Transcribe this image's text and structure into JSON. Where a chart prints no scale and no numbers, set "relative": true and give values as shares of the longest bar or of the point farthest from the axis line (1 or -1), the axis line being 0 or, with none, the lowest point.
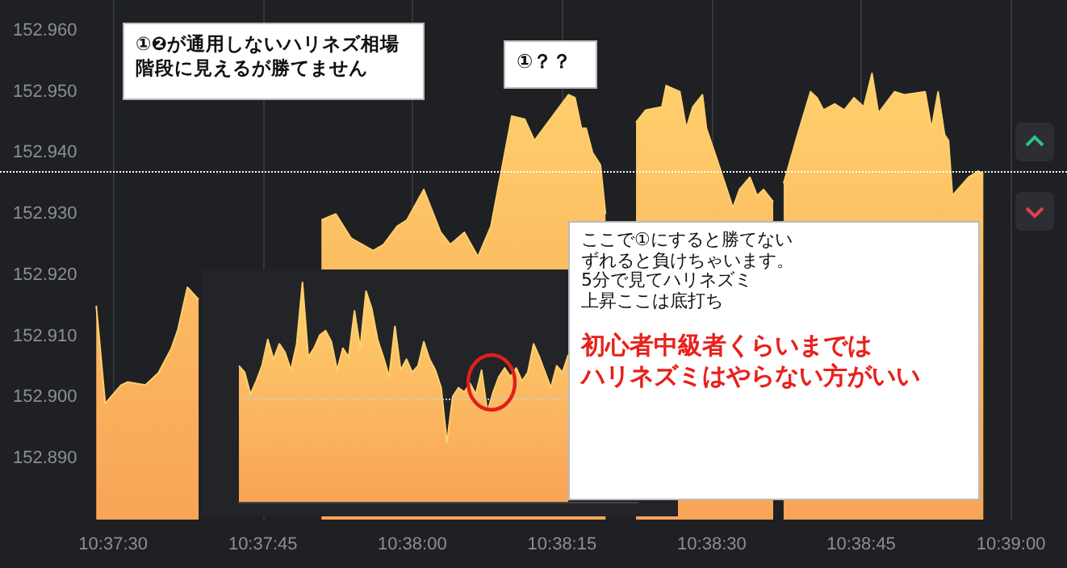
{
  "chart_data": [
    {
      "type": "area",
      "color": "#ffd06c",
      "x": [
        10.62453,
        10.62478,
        10.62522,
        10.6254,
        10.6259,
        10.62626,
        10.62662,
        10.6268,
        10.62707,
        10.62738,
        10.62905,
        10.6308,
        10.6312,
        10.63163,
        10.63224,
        10.63253,
        10.63291,
        10.63318,
        10.63365,
        10.63412,
        10.63439,
        10.63478,
        10.63516,
        10.63552,
        10.6361,
        10.63646,
        10.63673,
        10.63768,
        10.63786,
        10.63804,
        10.63817,
        10.63835,
        10.63857,
        10.63871,
        10.63907,
        10.63956,
        10.63983,
        10.64028,
        10.6404,
        10.64078,
        10.64096,
        10.64114,
        10.64141,
        10.64152,
        10.64181,
        10.64226,
        10.64244,
        10.64273,
        10.64293,
        10.64311,
        10.64338,
        10.64356,
        10.64367,
        10.64406,
        10.64442,
        10.6446,
        10.64478,
        10.64509,
        10.64536,
        10.64563,
        10.6459,
        10.64613,
        10.64631,
        10.64676,
        10.64703,
        10.64761,
        10.64779,
        10.64797,
        10.64815,
        10.64826,
        10.64837,
        10.64882,
        10.64909,
        10.64923
      ],
      "values": [
        152.915,
        152.899,
        152.902,
        152.9025,
        152.902,
        152.904,
        152.908,
        152.911,
        152.918,
        152.916,
        null,
        152.929,
        152.93,
        152.926,
        152.924,
        152.925,
        152.928,
        152.929,
        152.934,
        152.927,
        152.925,
        152.927,
        152.923,
        152.928,
        152.946,
        152.9455,
        152.942,
        152.9495,
        152.949,
        152.944,
        152.944,
        152.94,
        152.938,
        152.93,
        null,
        152.945,
        152.947,
        152.9475,
        152.951,
        152.95,
        152.944,
        152.9475,
        152.9495,
        152.944,
        152.939,
        152.931,
        152.934,
        152.936,
        152.933,
        152.934,
        152.932,
        null,
        152.935,
        152.943,
        152.95,
        152.949,
        152.947,
        152.948,
        152.947,
        152.949,
        152.9475,
        152.953,
        152.9465,
        152.95,
        152.9495,
        152.95,
        152.944,
        152.95,
        152.943,
        152.942,
        152.933,
        152.936,
        152.937,
        152.9365
      ],
      "xlim": [
        10.62185,
        10.65156
      ],
      "ylim": [
        152.88,
        152.965
      ],
      "xticks": [
        {
          "value": 10.625,
          "label": "10:37:30"
        },
        {
          "value": 10.62917,
          "label": "10:37:45"
        },
        {
          "value": 10.63333,
          "label": "10:38:00"
        },
        {
          "value": 10.6375,
          "label": "10:38:15"
        },
        {
          "value": 10.64167,
          "label": "10:38:30"
        },
        {
          "value": 10.64583,
          "label": "10:38:45"
        },
        {
          "value": 10.65,
          "label": "10:39:00"
        }
      ],
      "yticks": [
        {
          "value": 152.89,
          "label": "152.890"
        },
        {
          "value": 152.9,
          "label": "152.900"
        },
        {
          "value": 152.91,
          "label": "152.910"
        },
        {
          "value": 152.92,
          "label": "152.920"
        },
        {
          "value": 152.93,
          "label": "152.930"
        },
        {
          "value": 152.94,
          "label": "152.940"
        },
        {
          "value": 152.95,
          "label": "152.950"
        },
        {
          "value": 152.96,
          "label": "152.960"
        }
      ],
      "grid": "x",
      "ref_lines": [
        {
          "axis": "y",
          "value": 152.937,
          "color": "#ffffff",
          "line_style": "dotted"
        }
      ],
      "annotations": [
        "①❷が通用しないハリネズ相場",
        "階段に見えるが勝てません",
        "①？？",
        "ここで①にすると勝てない",
        "ずれると負けちゃいます。",
        "5分で見てハリネズミ",
        "上昇ここは底打ち",
        "初心者中級者くらいまでは",
        "ハリネズミはやらない方がいい"
      ]
    },
    {
      "type": "area",
      "color": "#ffd06c",
      "relative": true,
      "categories": [
        null,
        null,
        null,
        null,
        null,
        null,
        null,
        null,
        null,
        null,
        null,
        null,
        null,
        null,
        null,
        null,
        null,
        null,
        null,
        null,
        null,
        null,
        null,
        null,
        null,
        null,
        null,
        null,
        null,
        null,
        null,
        null,
        null,
        null,
        null,
        null,
        null,
        null,
        null,
        null,
        null,
        null,
        null,
        null,
        null,
        null,
        null,
        null,
        null,
        null,
        null,
        null,
        null,
        null,
        null,
        null,
        null,
        null,
        null,
        null,
        null,
        null,
        null,
        null,
        null,
        null,
        null,
        null,
        null,
        null
      ],
      "values": [
        0.62,
        0.59,
        0.49,
        0.55,
        0.62,
        0.74,
        0.65,
        0.72,
        0.68,
        0.6,
        0.72,
        1,
        0.66,
        0.7,
        0.76,
        0.78,
        0.73,
        0.6,
        0.7,
        0.66,
        0.87,
        0.7,
        0.96,
        0.88,
        0.74,
        0.66,
        0.57,
        0.8,
        0.6,
        0.65,
        0.59,
        0.62,
        0.73,
        0.65,
        0.6,
        0.52,
        0.27,
        0.48,
        0.52,
        0.5,
        0.54,
        0.49,
        0.6,
        0.41,
        0.5,
        0.57,
        0.61,
        0.57,
        0.61,
        0.55,
        0.59,
        0.72,
        0.66,
        0.59,
        0.52,
        0.62,
        0.59,
        0.67,
        null,
        null,
        null,
        null,
        null,
        null,
        null,
        null,
        null,
        null,
        null,
        null
      ],
      "ref_lines": [
        {
          "axis": "y",
          "value": 0.47,
          "color": "#cccccc",
          "line_style": "dotted"
        }
      ]
    }
  ]
}
